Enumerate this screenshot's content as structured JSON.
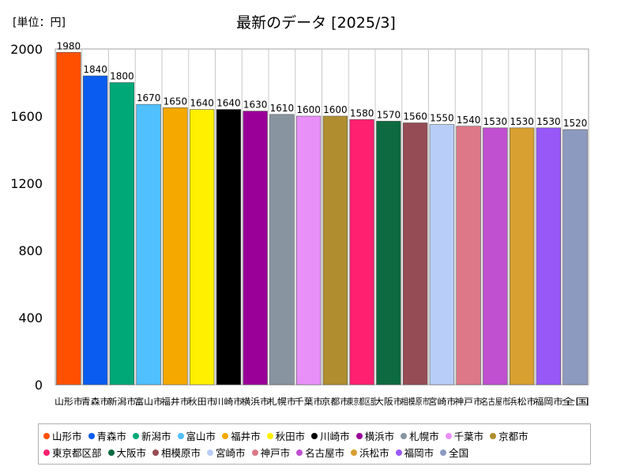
{
  "chart_data": {
    "type": "bar",
    "title": "最新のデータ [2025/3]",
    "unit_label": "[単位：円]",
    "xlabel": "",
    "ylabel": "",
    "ylim": [
      0,
      2000
    ],
    "yticks": [
      0,
      400,
      800,
      1200,
      1600,
      2000
    ],
    "grid": false,
    "legend_position": "bottom",
    "categories": [
      "山形市",
      "青森市",
      "新潟市",
      "富山市",
      "福井市",
      "秋田市",
      "川崎市",
      "横浜市",
      "札幌市",
      "千葉市",
      "京都市",
      "東京都区部",
      "大阪市",
      "相模原市",
      "宮崎市",
      "神戸市",
      "名古屋市",
      "浜松市",
      "福岡市",
      "全国"
    ],
    "values": [
      1980,
      1840,
      1800,
      1670,
      1650,
      1640,
      1640,
      1630,
      1610,
      1600,
      1600,
      1580,
      1570,
      1560,
      1550,
      1540,
      1530,
      1530,
      1530,
      1520
    ],
    "colors": [
      "#ff5000",
      "#0a5cf0",
      "#00a878",
      "#50c0ff",
      "#f5a800",
      "#fff000",
      "#000000",
      "#9a0098",
      "#8895a0",
      "#e890f8",
      "#b08e30",
      "#ff2070",
      "#0e6a40",
      "#964c54",
      "#b8cef8",
      "#dc7888",
      "#c050d0",
      "#d8a030",
      "#9858f8",
      "#8c9ac0"
    ]
  }
}
